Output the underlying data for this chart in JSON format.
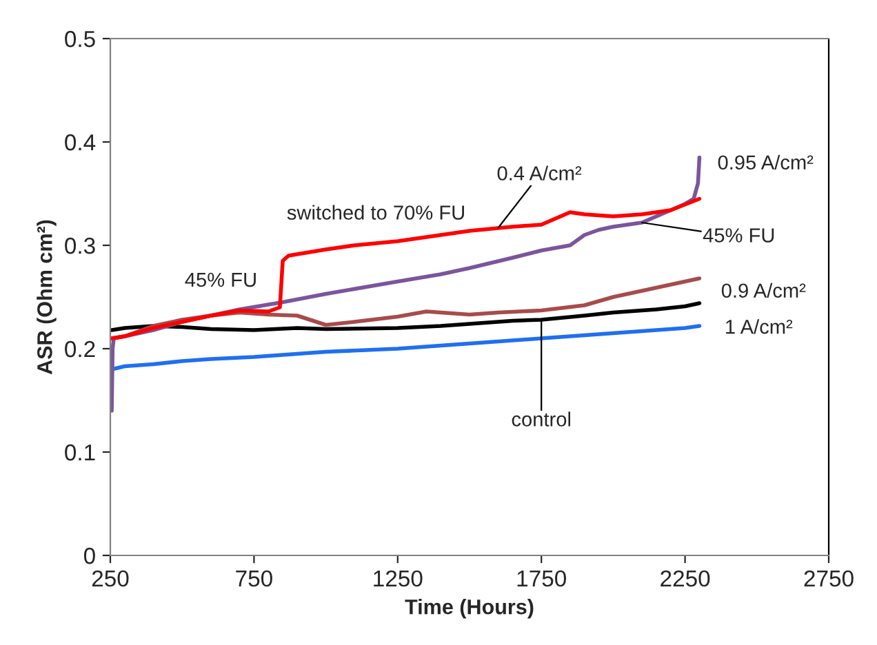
{
  "chart_data": {
    "type": "line",
    "xlabel": "Time (Hours)",
    "ylabel": "ASR (Ohm cm²)",
    "xlim": [
      250,
      2750
    ],
    "xticks": [
      250,
      750,
      1250,
      1750,
      2250,
      2750
    ],
    "ylim": [
      0,
      0.5
    ],
    "yticks": [
      0,
      0.1,
      0.2,
      0.3,
      0.4,
      0.5
    ],
    "grid": false,
    "legend": false,
    "marker": "none",
    "line_style": "solid",
    "series": [
      {
        "color": "#1f6ff0",
        "x": [
          255,
          300,
          400,
          500,
          600,
          750,
          900,
          1000,
          1250,
          1400,
          1500,
          1750,
          1900,
          2000,
          2150,
          2250,
          2300
        ],
        "values": [
          0.18,
          0.183,
          0.185,
          0.188,
          0.19,
          0.192,
          0.195,
          0.197,
          0.2,
          0.203,
          0.205,
          0.21,
          0.213,
          0.215,
          0.218,
          0.22,
          0.222
        ]
      },
      {
        "color": "#000000",
        "x": [
          255,
          300,
          400,
          500,
          600,
          750,
          900,
          1000,
          1250,
          1400,
          1500,
          1650,
          1750,
          1900,
          2000,
          2150,
          2250,
          2300
        ],
        "values": [
          0.218,
          0.22,
          0.222,
          0.221,
          0.219,
          0.218,
          0.22,
          0.219,
          0.22,
          0.222,
          0.224,
          0.227,
          0.228,
          0.232,
          0.235,
          0.238,
          0.241,
          0.244
        ]
      },
      {
        "color": "#a84b4b",
        "x": [
          255,
          300,
          400,
          500,
          600,
          700,
          800,
          900,
          1000,
          1100,
          1250,
          1350,
          1500,
          1600,
          1750,
          1900,
          2000,
          2100,
          2200,
          2300
        ],
        "values": [
          0.21,
          0.212,
          0.222,
          0.228,
          0.232,
          0.235,
          0.233,
          0.232,
          0.223,
          0.226,
          0.231,
          0.236,
          0.233,
          0.235,
          0.237,
          0.242,
          0.25,
          0.256,
          0.262,
          0.268
        ]
      },
      {
        "color": "#7b559c",
        "x": [
          255,
          258,
          262,
          300,
          400,
          500,
          600,
          700,
          850,
          1000,
          1250,
          1400,
          1500,
          1650,
          1750,
          1850,
          1900,
          1950,
          2000,
          2100,
          2150,
          2250,
          2280,
          2295,
          2300
        ],
        "values": [
          0.14,
          0.2,
          0.21,
          0.212,
          0.218,
          0.226,
          0.232,
          0.238,
          0.245,
          0.253,
          0.265,
          0.272,
          0.278,
          0.288,
          0.295,
          0.3,
          0.31,
          0.315,
          0.318,
          0.322,
          0.328,
          0.34,
          0.345,
          0.36,
          0.385
        ]
      },
      {
        "color": "#ff0000",
        "x": [
          255,
          300,
          400,
          500,
          600,
          700,
          800,
          840,
          850,
          870,
          1000,
          1100,
          1250,
          1400,
          1500,
          1650,
          1750,
          1800,
          1850,
          1900,
          2000,
          2100,
          2200,
          2300
        ],
        "values": [
          0.21,
          0.212,
          0.22,
          0.226,
          0.232,
          0.237,
          0.236,
          0.24,
          0.285,
          0.29,
          0.296,
          0.3,
          0.304,
          0.31,
          0.314,
          0.318,
          0.32,
          0.326,
          0.332,
          0.33,
          0.328,
          0.33,
          0.334,
          0.345
        ]
      }
    ],
    "annotations": [
      {
        "text": "switched to 70% FU",
        "x": 850,
        "y": 0.29
      },
      {
        "text": "45% FU",
        "x": 600,
        "y": 0.232
      },
      {
        "text": "0.4 A/cm²",
        "x": 1600,
        "y": 0.317
      },
      {
        "text": "0.95 A/cm²",
        "x": 2300,
        "y": 0.385
      },
      {
        "text": "45% FU",
        "x": 2100,
        "y": 0.322
      },
      {
        "text": "0.9 A/cm²",
        "x": 2300,
        "y": 0.268
      },
      {
        "text": "1 A/cm²",
        "x": 2300,
        "y": 0.222
      },
      {
        "text": "control",
        "x": 1750,
        "y": 0.228
      }
    ]
  }
}
